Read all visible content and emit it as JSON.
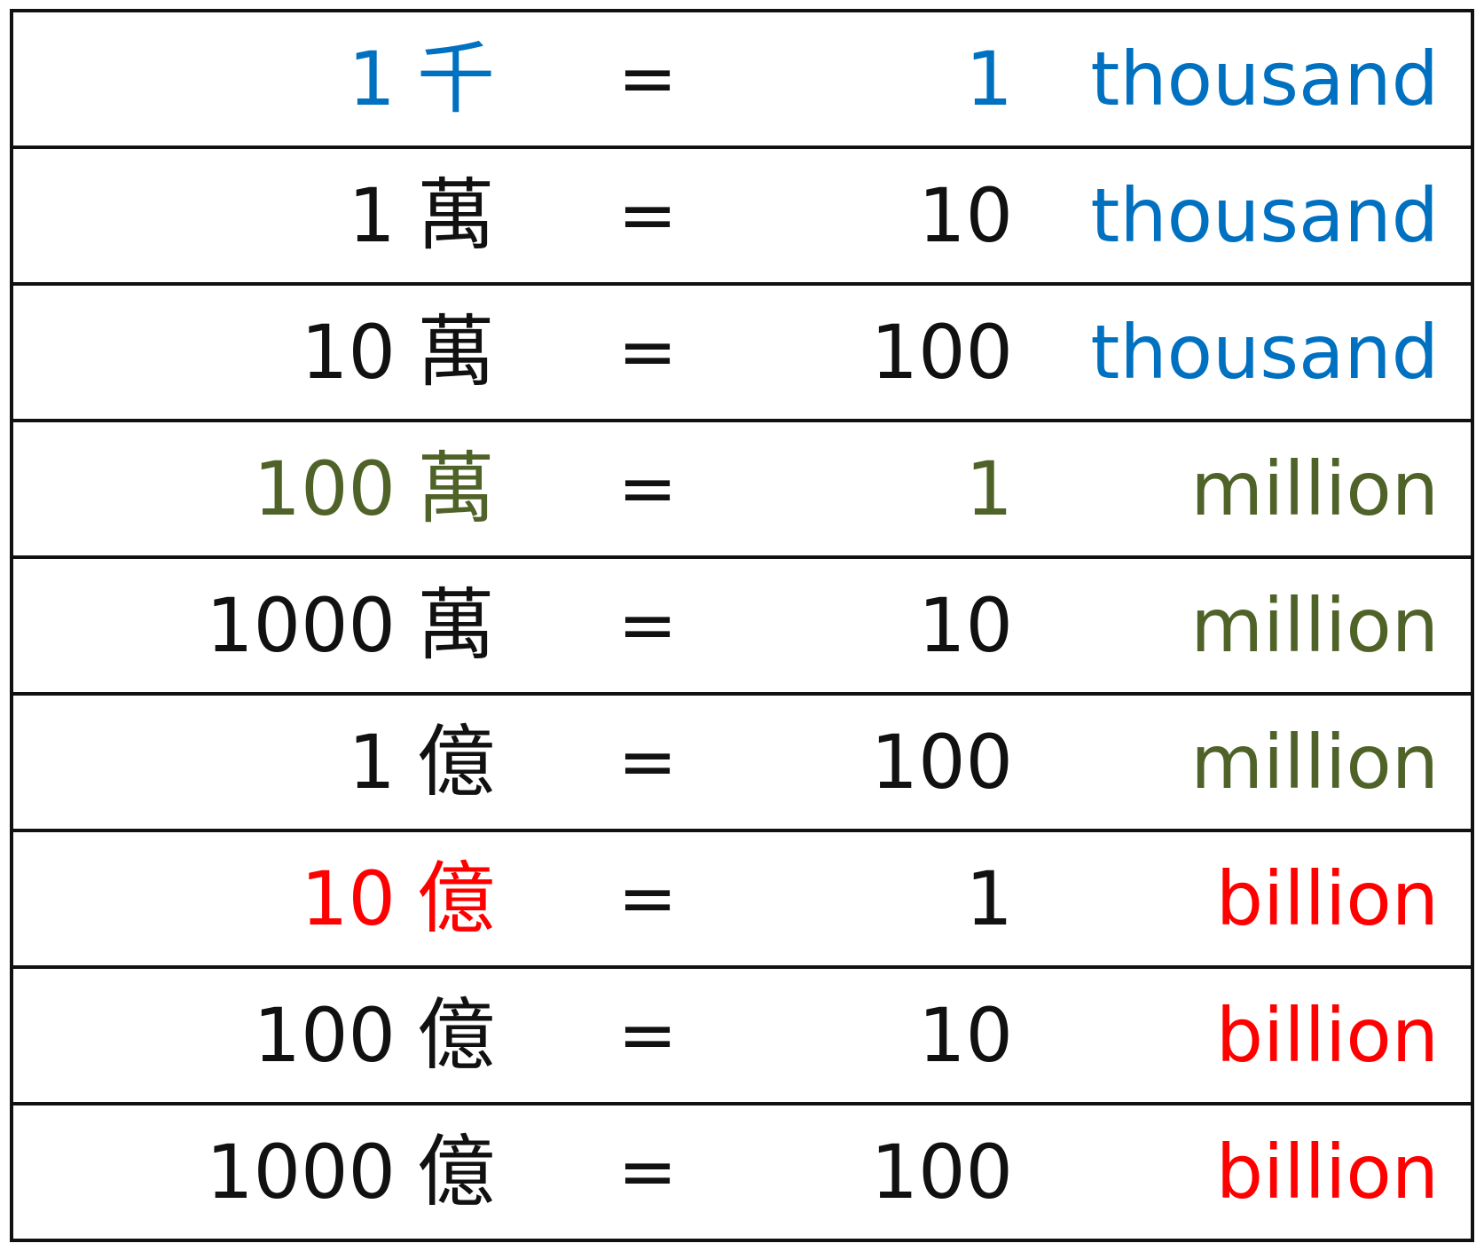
{
  "colors": {
    "blue": "#0070C0",
    "green": "#4F6228",
    "red": "#FF0000",
    "black": "#111111"
  },
  "equals": "=",
  "rows": [
    {
      "num": "1",
      "unit": "千",
      "value": "1",
      "word": "thousand",
      "left_color": "blue",
      "value_color": "blue",
      "word_color": "blue"
    },
    {
      "num": "1",
      "unit": "萬",
      "value": "10",
      "word": "thousand",
      "left_color": "black",
      "value_color": "black",
      "word_color": "blue"
    },
    {
      "num": "10",
      "unit": "萬",
      "value": "100",
      "word": "thousand",
      "left_color": "black",
      "value_color": "black",
      "word_color": "blue"
    },
    {
      "num": "100",
      "unit": "萬",
      "value": "1",
      "word": "million",
      "left_color": "green",
      "value_color": "green",
      "word_color": "green"
    },
    {
      "num": "1000",
      "unit": "萬",
      "value": "10",
      "word": "million",
      "left_color": "black",
      "value_color": "black",
      "word_color": "green"
    },
    {
      "num": "1",
      "unit": "億",
      "value": "100",
      "word": "million",
      "left_color": "black",
      "value_color": "black",
      "word_color": "green"
    },
    {
      "num": "10",
      "unit": "億",
      "value": "1",
      "word": "billion",
      "left_color": "red",
      "value_color": "black",
      "word_color": "red"
    },
    {
      "num": "100",
      "unit": "億",
      "value": "10",
      "word": "billion",
      "left_color": "black",
      "value_color": "black",
      "word_color": "red"
    },
    {
      "num": "1000",
      "unit": "億",
      "value": "100",
      "word": "billion",
      "left_color": "black",
      "value_color": "black",
      "word_color": "red"
    }
  ]
}
